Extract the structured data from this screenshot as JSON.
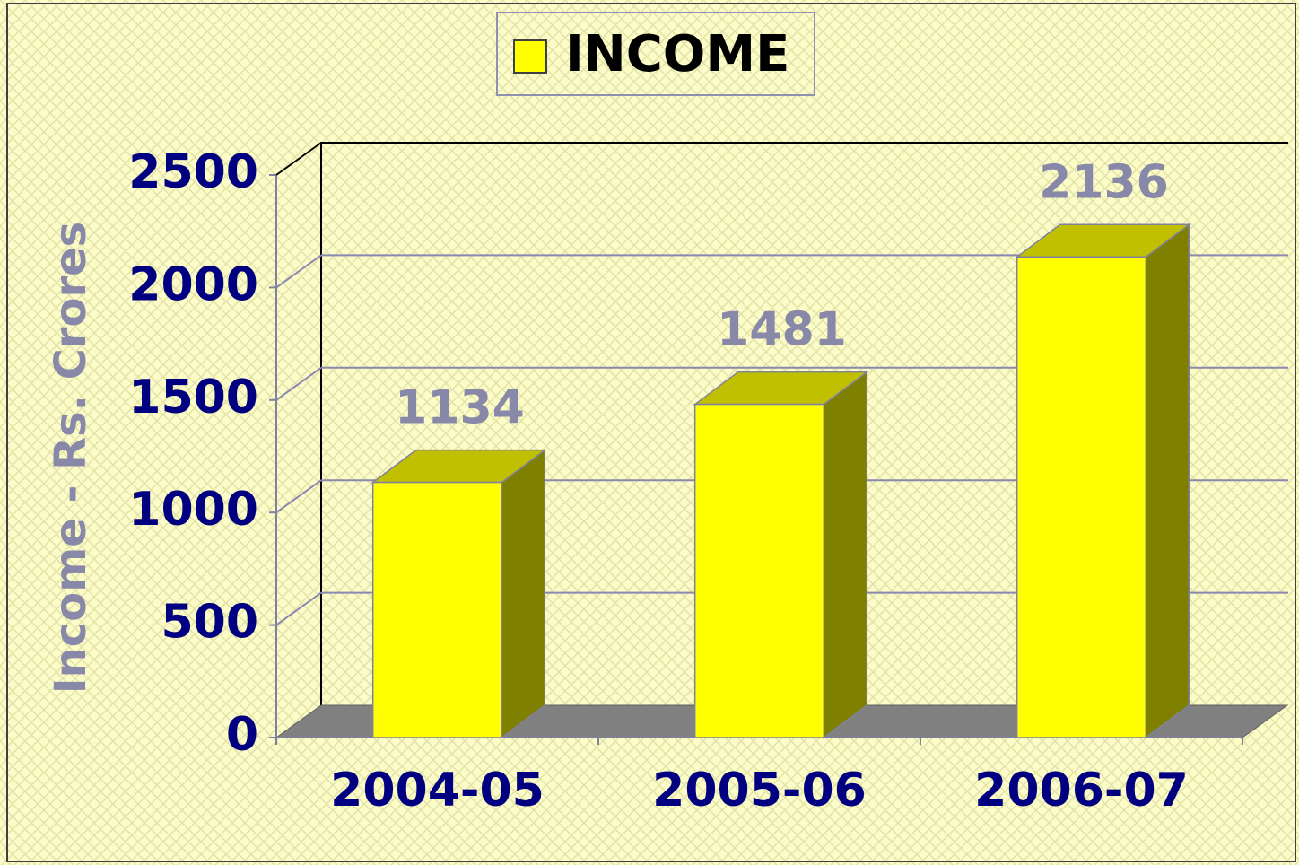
{
  "chart_data": {
    "type": "bar3d",
    "legend": "INCOME",
    "y_label": "Income - Rs. Crores",
    "categories": [
      "2004-05",
      "2005-06",
      "2006-07"
    ],
    "values": [
      1134,
      1481,
      2136
    ],
    "color": "#ffff00",
    "ylim": [
      0,
      2500
    ],
    "yticks": [
      0,
      500,
      1000,
      1500,
      2000,
      2500
    ],
    "grid": true
  }
}
